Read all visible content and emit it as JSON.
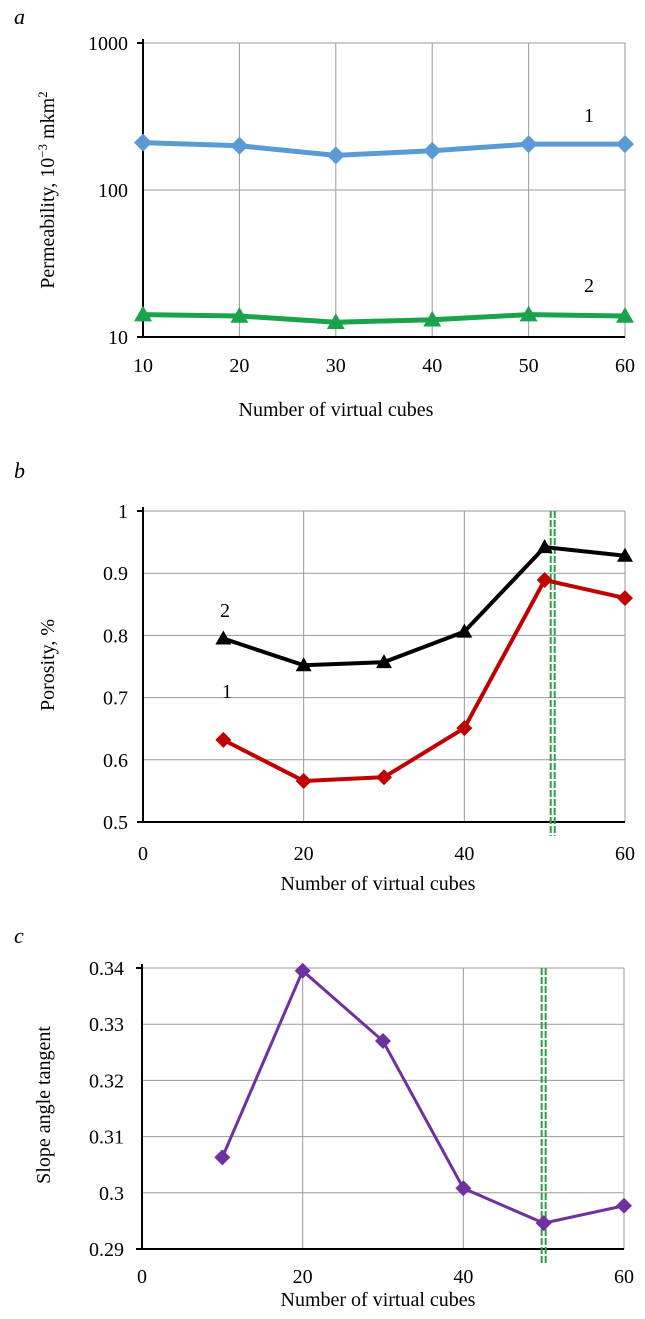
{
  "chart_data": [
    {
      "panel": "a",
      "type": "line",
      "x": [
        10,
        20,
        30,
        40,
        50,
        60
      ],
      "xlabel": "Number of virtual cubes",
      "ylabel": "Permeability, 10",
      "ylabel_exponent": "−3",
      "ylabel_unit": " mkm",
      "ylabel_unit_exponent": "2",
      "yscale": "log",
      "ylim": [
        10,
        1000
      ],
      "xlim": [
        10,
        60
      ],
      "xticks": [
        "10",
        "20",
        "30",
        "40",
        "50",
        "60"
      ],
      "yticks": [
        "10",
        "100",
        "1000"
      ],
      "grid": true,
      "series": [
        {
          "name": "1",
          "color": "#5b9bd5",
          "marker": "diamond",
          "values": [
            210,
            200,
            172,
            185,
            205,
            205
          ]
        },
        {
          "name": "2",
          "color": "#1aa34a",
          "marker": "triangle",
          "values": [
            14.2,
            13.9,
            12.6,
            13.1,
            14.2,
            13.9
          ]
        }
      ]
    },
    {
      "panel": "b",
      "type": "line",
      "x": [
        10,
        20,
        30,
        40,
        50,
        60
      ],
      "xlabel": "Number of virtual cubes",
      "ylabel": "Porosity, %",
      "ylim": [
        0.5,
        1
      ],
      "xlim": [
        0,
        60
      ],
      "xticks": [
        "0",
        "20",
        "40",
        "60"
      ],
      "yticks": [
        "0.5",
        "0.6",
        "0.7",
        "0.8",
        "0.9",
        "1"
      ],
      "grid": true,
      "marker_line_x": 51,
      "marker_line_color": "#2e9e48",
      "series": [
        {
          "name": "1",
          "color": "#c00000",
          "marker": "diamond",
          "values": [
            0.632,
            0.566,
            0.572,
            0.651,
            0.889,
            0.86
          ]
        },
        {
          "name": "2",
          "color": "#000000",
          "marker": "triangle",
          "values": [
            0.795,
            0.752,
            0.757,
            0.806,
            0.942,
            0.928
          ]
        }
      ]
    },
    {
      "panel": "c",
      "type": "line",
      "x": [
        10,
        20,
        30,
        40,
        50,
        60
      ],
      "xlabel": "Number of virtual cubes",
      "ylabel": "Slope angle tangent",
      "ylim": [
        0.29,
        0.34
      ],
      "xlim": [
        0,
        60
      ],
      "xticks": [
        "0",
        "20",
        "40",
        "60"
      ],
      "yticks": [
        "0.29",
        "0.3",
        "0.31",
        "0.32",
        "0.33",
        "0.34"
      ],
      "grid": true,
      "marker_line_x": 50,
      "marker_line_color": "#2e9e48",
      "series": [
        {
          "color": "#7030a0",
          "marker": "diamond",
          "values": [
            0.3063,
            0.3395,
            0.327,
            0.3008,
            0.2946,
            0.2977
          ]
        }
      ]
    }
  ]
}
